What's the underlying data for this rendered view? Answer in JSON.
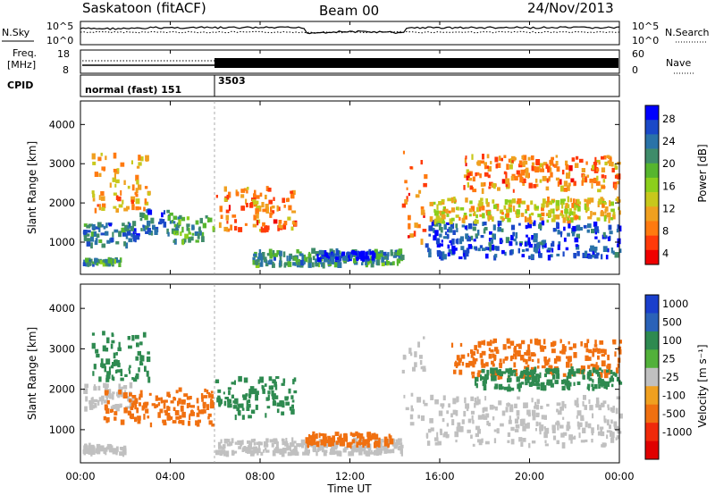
{
  "header": {
    "title": "Saskatoon (fitACF)",
    "beam": "Beam 00",
    "date": "24/Nov/2013"
  },
  "noise_panel": {
    "left_label": "N.Sky",
    "right_label": "N.Search",
    "left_ticks": [
      "10^5",
      "10^0"
    ],
    "right_ticks": [
      "10^5",
      "10^0"
    ]
  },
  "freq_panel": {
    "left_label_1": "Freq.",
    "left_label_2": "[MHz]",
    "left_ticks": [
      "18",
      "8"
    ],
    "right_label": "Nave",
    "right_ticks": [
      "60",
      "0"
    ]
  },
  "cpid_panel": {
    "label": "CPID",
    "modes": [
      {
        "name": "normal (fast) 151",
        "start_hour": 0
      },
      {
        "name": "3503",
        "start_hour": 6
      }
    ]
  },
  "time_axis": {
    "label": "Time UT",
    "ticks": [
      "00:00",
      "04:00",
      "08:00",
      "12:00",
      "16:00",
      "20:00",
      "00:00"
    ],
    "range_hours": [
      0,
      24
    ]
  },
  "chart_data": [
    {
      "type": "heatmap",
      "name": "power",
      "ylabel": "Slant Range [km]",
      "ylim": [
        180,
        4600
      ],
      "yticks": [
        "1000",
        "2000",
        "3000",
        "4000"
      ],
      "colorbar_label": "Power [dB]",
      "colorbar_ticks": [
        "4",
        "8",
        "12",
        "16",
        "20",
        "24",
        "28"
      ],
      "colorbar_colors": [
        "#0000ff",
        "#1a49c8",
        "#2a73a8",
        "#3f8c6a",
        "#56b52e",
        "#8ccf1c",
        "#c8c81c",
        "#f0a020",
        "#ff7a10",
        "#ff3a0a",
        "#f00000"
      ],
      "regions": [
        {
          "t0": 0.1,
          "t1": 1.8,
          "r0": 400,
          "r1": 560,
          "level": 20
        },
        {
          "t0": 0.1,
          "t1": 2.5,
          "r0": 900,
          "r1": 1500,
          "level": 22
        },
        {
          "t0": 2.6,
          "t1": 4.0,
          "r0": 1200,
          "r1": 1800,
          "level": 22
        },
        {
          "t0": 4.0,
          "t1": 5.9,
          "r0": 1000,
          "r1": 1650,
          "level": 18
        },
        {
          "t0": 0.5,
          "t1": 3.0,
          "r0": 1800,
          "r1": 3300,
          "level": 10
        },
        {
          "t0": 6.0,
          "t1": 9.5,
          "r0": 1300,
          "r1": 2400,
          "level": 8
        },
        {
          "t0": 7.5,
          "t1": 14.3,
          "r0": 400,
          "r1": 780,
          "level": 20
        },
        {
          "t0": 10.5,
          "t1": 13.0,
          "r0": 550,
          "r1": 750,
          "level": 26
        },
        {
          "t0": 14.3,
          "t1": 15.3,
          "r0": 1000,
          "r1": 3300,
          "level": 8
        },
        {
          "t0": 15.3,
          "t1": 24.0,
          "r0": 600,
          "r1": 1500,
          "level": 24
        },
        {
          "t0": 15.5,
          "t1": 24.0,
          "r0": 1500,
          "r1": 2100,
          "level": 12
        },
        {
          "t0": 17.0,
          "t1": 24.0,
          "r0": 2300,
          "r1": 3200,
          "level": 8
        }
      ]
    },
    {
      "type": "heatmap",
      "name": "velocity",
      "ylabel": "Slant Range [km]",
      "ylim": [
        180,
        4600
      ],
      "yticks": [
        "1000",
        "2000",
        "3000",
        "4000"
      ],
      "colorbar_label": "Velocity [m s⁻¹]",
      "colorbar_ticks": [
        "1000",
        "500",
        "100",
        "25",
        "-25",
        "-100",
        "-500",
        "-1000"
      ],
      "colorbar_colors": [
        "#1a3fcc",
        "#2a62b8",
        "#2e8a50",
        "#52b13a",
        "#c0c0c0",
        "#f0a020",
        "#f07010",
        "#f02a0a",
        "#e00000"
      ],
      "regions": [
        {
          "t0": 0.1,
          "t1": 2.0,
          "r0": 400,
          "r1": 600,
          "level": 0
        },
        {
          "t0": 0.1,
          "t1": 2.3,
          "r0": 1500,
          "r1": 2100,
          "level": 0
        },
        {
          "t0": 1.0,
          "t1": 5.9,
          "r0": 1100,
          "r1": 2000,
          "level": -100
        },
        {
          "t0": 0.5,
          "t1": 3.0,
          "r0": 2200,
          "r1": 3400,
          "level": 50
        },
        {
          "t0": 6.0,
          "t1": 9.5,
          "r0": 1300,
          "r1": 2300,
          "level": 60
        },
        {
          "t0": 6.0,
          "t1": 14.3,
          "r0": 400,
          "r1": 750,
          "level": 0
        },
        {
          "t0": 10.0,
          "t1": 13.8,
          "r0": 600,
          "r1": 900,
          "level": -100
        },
        {
          "t0": 14.3,
          "t1": 15.3,
          "r0": 1000,
          "r1": 3300,
          "level": 0
        },
        {
          "t0": 15.3,
          "t1": 24.0,
          "r0": 600,
          "r1": 1800,
          "level": 0
        },
        {
          "t0": 16.5,
          "t1": 24.0,
          "r0": 2300,
          "r1": 3200,
          "level": -100
        },
        {
          "t0": 17.5,
          "t1": 24.0,
          "r0": 2000,
          "r1": 2500,
          "level": 50
        }
      ]
    }
  ]
}
